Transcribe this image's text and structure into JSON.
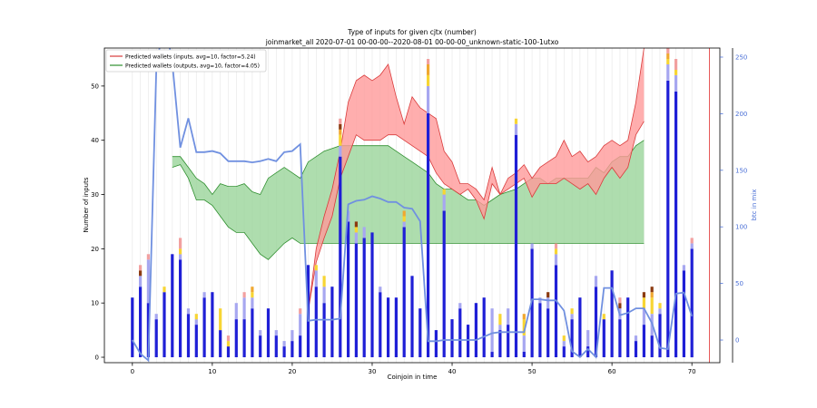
{
  "chart_data": {
    "type": "bar",
    "title": "Type of inputs for given cjtx (number)",
    "subtitle": "joinmarket_all 2020-07-01 00-00-00--2020-08-01 00-00-00_unknown-static-100-1utxo",
    "xlabel": "Coinjoin in time",
    "ylabel": "Number of inputs",
    "y2label": "btc in mix",
    "xlim": [
      -3.5,
      73.5
    ],
    "ylim": [
      -1,
      57
    ],
    "y2lim": [
      -20,
      258
    ],
    "x_ticks": [
      0,
      10,
      20,
      30,
      40,
      50,
      60,
      70
    ],
    "y_ticks": [
      0,
      10,
      20,
      30,
      40,
      50
    ],
    "y2_ticks": [
      0,
      50,
      100,
      150,
      200,
      250
    ],
    "grid": "vertical",
    "legend_position": "top-left",
    "colors": {
      "bar_main": "#1f1fd6",
      "bar_light": "#a7a7f0",
      "bar_yellow": "#f7d533",
      "bar_orange": "#f0a830",
      "bar_brown": "#8b3a10",
      "bar_pink": "#f2a0a0",
      "inputs_line": "#d93a3a",
      "inputs_fill": "#ff9a9a",
      "outputs_line": "#2f8f2f",
      "outputs_fill": "#9ad49a",
      "btc_line": "#7090e0",
      "axis2": "#4a6fd6",
      "red_edge": "#e03030"
    },
    "legend": [
      {
        "label": "Predicted wallets (inputs, avg=10, factor=5.24)",
        "key": "inputs"
      },
      {
        "label": "Predicted wallets (outputs, avg=10, factor=4.05)",
        "key": "outputs"
      }
    ],
    "bars_x": [
      0,
      1,
      2,
      3,
      4,
      5,
      6,
      7,
      8,
      9,
      10,
      11,
      12,
      13,
      14,
      15,
      16,
      17,
      18,
      19,
      20,
      21,
      22,
      23,
      24,
      25,
      26,
      27,
      28,
      29,
      30,
      31,
      32,
      33,
      34,
      35,
      36,
      37,
      38,
      39,
      40,
      41,
      42,
      43,
      44,
      45,
      46,
      47,
      48,
      49,
      50,
      51,
      52,
      53,
      54,
      55,
      56,
      57,
      58,
      59,
      60,
      61,
      62,
      63,
      64,
      65,
      66,
      67,
      68,
      69,
      70
    ],
    "bars_stacks": [
      [
        11,
        0,
        0,
        0,
        0,
        0
      ],
      [
        13,
        2,
        0,
        0,
        1,
        1
      ],
      [
        10,
        8,
        0,
        0,
        0,
        1
      ],
      [
        7,
        1,
        0,
        0,
        0,
        0
      ],
      [
        12,
        0,
        1,
        0,
        0,
        0
      ],
      [
        19,
        0,
        0,
        0,
        0,
        0
      ],
      [
        18,
        1,
        1,
        0,
        0,
        2
      ],
      [
        8,
        1,
        0,
        0,
        0,
        0
      ],
      [
        6,
        1,
        1,
        0,
        0,
        0
      ],
      [
        11,
        1,
        0,
        0,
        0,
        0
      ],
      [
        12,
        0,
        0,
        0,
        0,
        0
      ],
      [
        5,
        0,
        4,
        0,
        0,
        0
      ],
      [
        2,
        0,
        1,
        0,
        0,
        1
      ],
      [
        7,
        3,
        0,
        0,
        0,
        0
      ],
      [
        7,
        4,
        0,
        0,
        0,
        1
      ],
      [
        9,
        2,
        1,
        1,
        0,
        0
      ],
      [
        4,
        1,
        0,
        0,
        0,
        0
      ],
      [
        9,
        0,
        0,
        0,
        0,
        0
      ],
      [
        4,
        1,
        0,
        0,
        0,
        0
      ],
      [
        2,
        1,
        0,
        0,
        0,
        0
      ],
      [
        3,
        2,
        0,
        0,
        0,
        0
      ],
      [
        4,
        4,
        0,
        0,
        0,
        1
      ],
      [
        17,
        0,
        0,
        0,
        0,
        0
      ],
      [
        13,
        3,
        1,
        0,
        0,
        0
      ],
      [
        10,
        3,
        2,
        0,
        0,
        0
      ],
      [
        13,
        0,
        0,
        0,
        0,
        0
      ],
      [
        37,
        2,
        2,
        1,
        1,
        1
      ],
      [
        25,
        2,
        0,
        0,
        0,
        0
      ],
      [
        21,
        2,
        1,
        0,
        1,
        0
      ],
      [
        22,
        2,
        0,
        0,
        0,
        0
      ],
      [
        23,
        0,
        0,
        0,
        0,
        0
      ],
      [
        12,
        1,
        0,
        0,
        0,
        0
      ],
      [
        11,
        0,
        0,
        0,
        0,
        0
      ],
      [
        11,
        0,
        0,
        0,
        0,
        0
      ],
      [
        24,
        1,
        1,
        1,
        0,
        0
      ],
      [
        15,
        0,
        0,
        0,
        0,
        0
      ],
      [
        9,
        0,
        0,
        0,
        0,
        0
      ],
      [
        45,
        5,
        2,
        2,
        0,
        1
      ],
      [
        5,
        0,
        0,
        0,
        0,
        0
      ],
      [
        27,
        3,
        1,
        0,
        0,
        0
      ],
      [
        7,
        0,
        0,
        0,
        0,
        0
      ],
      [
        9,
        1,
        0,
        0,
        0,
        0
      ],
      [
        6,
        0,
        0,
        0,
        0,
        0
      ],
      [
        10,
        0,
        0,
        0,
        0,
        0
      ],
      [
        11,
        0,
        0,
        0,
        0,
        0
      ],
      [
        1,
        8,
        0,
        0,
        0,
        0
      ],
      [
        5,
        1,
        2,
        0,
        0,
        0
      ],
      [
        6,
        3,
        0,
        0,
        0,
        0
      ],
      [
        41,
        2,
        1,
        0,
        0,
        0
      ],
      [
        1,
        3,
        3,
        1,
        0,
        0
      ],
      [
        20,
        1,
        0,
        0,
        0,
        0
      ],
      [
        10,
        1,
        0,
        0,
        0,
        0
      ],
      [
        9,
        2,
        0,
        0,
        1,
        0
      ],
      [
        17,
        2,
        1,
        0,
        0,
        1
      ],
      [
        2,
        1,
        1,
        0,
        0,
        0
      ],
      [
        7,
        1,
        1,
        0,
        0,
        0
      ],
      [
        11,
        0,
        0,
        0,
        0,
        0
      ],
      [
        2,
        3,
        0,
        0,
        0,
        0
      ],
      [
        13,
        2,
        0,
        0,
        0,
        0
      ],
      [
        7,
        0,
        1,
        0,
        0,
        0
      ],
      [
        16,
        0,
        0,
        0,
        0,
        0
      ],
      [
        7,
        2,
        0,
        0,
        1,
        1
      ],
      [
        11,
        0,
        0,
        0,
        0,
        0
      ],
      [
        3,
        1,
        0,
        0,
        0,
        0
      ],
      [
        6,
        3,
        2,
        0,
        1,
        0
      ],
      [
        4,
        4,
        3,
        1,
        1,
        0
      ],
      [
        8,
        1,
        1,
        0,
        0,
        0
      ],
      [
        51,
        3,
        1,
        1,
        0,
        1
      ],
      [
        49,
        3,
        1,
        0,
        0,
        2
      ],
      [
        16,
        1,
        0,
        0,
        0,
        0
      ],
      [
        20,
        1,
        0,
        0,
        0,
        1
      ]
    ],
    "btc_x": [
      0,
      1,
      2,
      3,
      4,
      5,
      6,
      7,
      8,
      9,
      10,
      11,
      12,
      13,
      14,
      15,
      16,
      17,
      18,
      19,
      20,
      21,
      22,
      23,
      24,
      25,
      26,
      27,
      28,
      29,
      30,
      31,
      32,
      33,
      34,
      35,
      36,
      37,
      38,
      39,
      40,
      41,
      42,
      43,
      44,
      45,
      46,
      47,
      48,
      49,
      50,
      51,
      52,
      53,
      54,
      55,
      56,
      57,
      58,
      59,
      60,
      61,
      62,
      63,
      64,
      65,
      66,
      67,
      68,
      69,
      70
    ],
    "btc_values": [
      0,
      -12,
      -18,
      240,
      285,
      245,
      170,
      196,
      166,
      166,
      167,
      165,
      158,
      158,
      158,
      157,
      158,
      160,
      158,
      166,
      167,
      173,
      17,
      18,
      18,
      18,
      19,
      120,
      123,
      124,
      127,
      125,
      122,
      122,
      117,
      116,
      105,
      -1,
      -1,
      0,
      0,
      0,
      0,
      0,
      3,
      6,
      7,
      7,
      7,
      7,
      36,
      36,
      35,
      35,
      26,
      -10,
      -15,
      -8,
      -15,
      46,
      46,
      22,
      24,
      28,
      28,
      15,
      -7,
      -8,
      41,
      42,
      21
    ],
    "inputs_x": [
      22,
      23,
      24,
      25,
      26,
      27,
      28,
      29,
      30,
      31,
      32,
      33,
      34,
      35,
      36,
      37,
      38,
      39,
      40,
      41,
      42,
      43,
      44,
      45,
      46,
      47,
      48,
      49,
      50,
      51,
      52,
      53,
      54,
      55,
      56,
      57,
      58,
      59,
      60,
      61,
      62,
      63,
      64
    ],
    "inputs_upper": [
      8.5,
      20,
      26,
      31,
      38,
      47,
      51,
      52,
      51,
      52,
      54,
      48,
      43,
      48,
      46,
      45,
      44,
      38,
      36,
      32,
      32,
      31,
      29,
      35,
      30,
      33,
      34,
      35.5,
      33,
      35,
      36,
      37,
      40,
      37,
      38,
      36,
      37,
      39,
      40,
      39,
      40,
      47,
      57
    ],
    "inputs_lower": [
      8.5,
      17.5,
      22,
      26,
      33,
      37,
      41,
      40,
      40,
      40,
      41,
      41,
      40,
      39,
      38,
      37,
      34,
      32,
      31,
      30,
      31,
      29,
      25.5,
      32,
      30,
      31,
      32,
      33,
      29.5,
      32,
      32,
      32,
      33,
      32,
      31,
      32,
      30,
      33,
      35,
      33,
      35,
      41,
      43.5
    ],
    "outputs_x": [
      5,
      6,
      7,
      8,
      9,
      10,
      11,
      12,
      13,
      14,
      15,
      16,
      17,
      18,
      19,
      20,
      21,
      22,
      23,
      24,
      25,
      26,
      27,
      28,
      29,
      30,
      31,
      32,
      33,
      34,
      35,
      36,
      37,
      38,
      39,
      40,
      41,
      42,
      43,
      44,
      45,
      46,
      47,
      48,
      49,
      50,
      51,
      52,
      53,
      54,
      55,
      56,
      57,
      58,
      59,
      60,
      61,
      62,
      63,
      64
    ],
    "outputs_upper": [
      37,
      37,
      35,
      33,
      32,
      30,
      32,
      31.5,
      31.5,
      32,
      30.5,
      30,
      33,
      34,
      35,
      34,
      33,
      36,
      37,
      38,
      38.5,
      39,
      39,
      39,
      39,
      39,
      39,
      39,
      38,
      37,
      36,
      35,
      34,
      32,
      31,
      31,
      30,
      29,
      29,
      28,
      29,
      30,
      30.5,
      31,
      32,
      33,
      33,
      32,
      33,
      33,
      33,
      33,
      33,
      35,
      34,
      36,
      37,
      37,
      39,
      40
    ],
    "outputs_lower": [
      35,
      35.5,
      33,
      29,
      29,
      28,
      26,
      24,
      23,
      23,
      21,
      19,
      18,
      19.5,
      21,
      22,
      21,
      21,
      21,
      21,
      21,
      21,
      21,
      21,
      21,
      21,
      21,
      21,
      21,
      21,
      21,
      21,
      21,
      21,
      21,
      21,
      21,
      21,
      21,
      21,
      21,
      21,
      21,
      21,
      21,
      21,
      21,
      21,
      21,
      21,
      21,
      21,
      21,
      21,
      21,
      21,
      21,
      21,
      21,
      21
    ]
  }
}
